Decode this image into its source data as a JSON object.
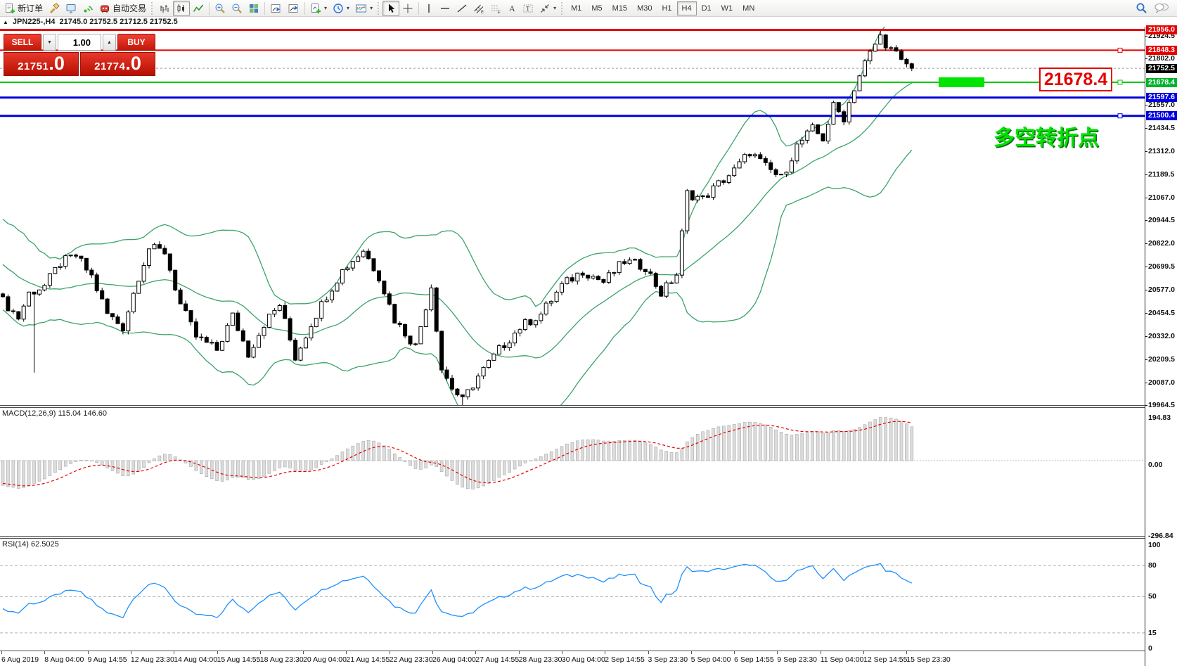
{
  "toolbar": {
    "new_order_label": "新订单",
    "auto_trading_label": "自动交易",
    "timeframes": [
      "M1",
      "M5",
      "M15",
      "M30",
      "H1",
      "H4",
      "D1",
      "W1",
      "MN"
    ],
    "active_timeframe": "H4",
    "icon_names": [
      "new-order",
      "hammer",
      "profiles",
      "signal",
      "auto-trading",
      "bar-chart",
      "candlestick-chart",
      "line-chart",
      "zoom-in",
      "zoom-out",
      "tile-windows",
      "chart-step-back",
      "chart-step-forward",
      "new-chart",
      "period-clock",
      "template-picture",
      "cursor",
      "crosshair",
      "vertical-line",
      "horizontal-line",
      "trendline",
      "equidistant-channel",
      "fibonacci",
      "text",
      "text-label",
      "arrows",
      "search",
      "chat"
    ]
  },
  "symbol_bar": {
    "triangle": "▲",
    "symbol": "JPN225-,H4",
    "ohlc": "21745.0 21752.5 21712.5 21752.5"
  },
  "trade_panel": {
    "sell_label": "SELL",
    "buy_label": "BUY",
    "volume": "1.00",
    "spin_down": "▼",
    "spin_up": "▲",
    "sell_price_main": "21751",
    "sell_price_frac": ".0",
    "buy_price_main": "21774",
    "buy_price_frac": ".0"
  },
  "annotations": {
    "price_callout": "21678.4",
    "chinese_note": "多空转折点"
  },
  "colors": {
    "line_red": "#e60000",
    "line_blue": "#0000e0",
    "line_green": "#00c800",
    "highlight_green": "#00e400",
    "badge_green": "#00b22d",
    "badge_black": "#000000",
    "band_green": "#3aa36a",
    "rsi_blue": "#1e90ff",
    "macd_bar_fill": "#dcdcdc",
    "macd_bar_stroke": "#a8a8a8"
  },
  "chart_data": {
    "type": "candlestick",
    "symbol": "JPN225-",
    "timeframe": "H4",
    "current_ohlc": {
      "open": 21745.0,
      "high": 21752.5,
      "low": 21712.5,
      "close": 21752.5
    },
    "ylim": [
      19964.5,
      21956.0
    ],
    "price_ticks": [
      21924.5,
      21802.0,
      21557.0,
      21434.5,
      21312.0,
      21189.5,
      21067.0,
      20944.5,
      20822.0,
      20699.5,
      20577.0,
      20454.5,
      20332.0,
      20209.5,
      20087.0,
      19964.5
    ],
    "price_badges": [
      {
        "price": 21956.0,
        "label": "21956.0",
        "color": "#e60000"
      },
      {
        "price": 21848.3,
        "label": "21848.3",
        "color": "#e60000"
      },
      {
        "price": 21752.5,
        "label": "21752.5",
        "color": "#000000"
      },
      {
        "price": 21678.4,
        "label": "21678.4",
        "color": "#00b22d"
      },
      {
        "price": 21597.6,
        "label": "21597.6",
        "color": "#0000e0"
      },
      {
        "price": 21500.4,
        "label": "21500.4",
        "color": "#0000e0"
      }
    ],
    "hlines": [
      {
        "price": 21956.0,
        "color": "red",
        "width": 3,
        "handle": false
      },
      {
        "price": 21848.3,
        "color": "red",
        "width": 2,
        "handle": true
      },
      {
        "price": 21678.4,
        "color": "green",
        "width": 2,
        "handle": true,
        "highlight": true
      },
      {
        "price": 21597.6,
        "color": "blue",
        "width": 3,
        "handle": false
      },
      {
        "price": 21500.4,
        "color": "blue",
        "width": 3,
        "handle": true
      }
    ],
    "current_price": 21752.5,
    "candles_n": 175,
    "price_anchors": [
      [
        0,
        20520
      ],
      [
        3,
        20430
      ],
      [
        5,
        20560
      ],
      [
        8,
        20600
      ],
      [
        11,
        20720
      ],
      [
        14,
        20760
      ],
      [
        17,
        20650
      ],
      [
        20,
        20450
      ],
      [
        23,
        20380
      ],
      [
        26,
        20650
      ],
      [
        28,
        20800
      ],
      [
        31,
        20780
      ],
      [
        34,
        20500
      ],
      [
        37,
        20330
      ],
      [
        41,
        20260
      ],
      [
        44,
        20440
      ],
      [
        47,
        20240
      ],
      [
        50,
        20400
      ],
      [
        53,
        20500
      ],
      [
        56,
        20220
      ],
      [
        59,
        20400
      ],
      [
        62,
        20550
      ],
      [
        65,
        20680
      ],
      [
        69,
        20790
      ],
      [
        72,
        20650
      ],
      [
        75,
        20420
      ],
      [
        79,
        20280
      ],
      [
        82,
        20600
      ],
      [
        84,
        20160
      ],
      [
        86,
        20060
      ],
      [
        88,
        19990
      ],
      [
        91,
        20120
      ],
      [
        95,
        20260
      ],
      [
        99,
        20380
      ],
      [
        103,
        20450
      ],
      [
        107,
        20600
      ],
      [
        111,
        20680
      ],
      [
        115,
        20620
      ],
      [
        119,
        20730
      ],
      [
        123,
        20700
      ],
      [
        126,
        20560
      ],
      [
        129,
        20660
      ],
      [
        131,
        21090
      ],
      [
        134,
        21060
      ],
      [
        137,
        21140
      ],
      [
        140,
        21210
      ],
      [
        143,
        21310
      ],
      [
        146,
        21230
      ],
      [
        149,
        21170
      ],
      [
        152,
        21340
      ],
      [
        155,
        21430
      ],
      [
        157,
        21380
      ],
      [
        159,
        21550
      ],
      [
        161,
        21490
      ],
      [
        163,
        21650
      ],
      [
        165,
        21780
      ],
      [
        167,
        21880
      ],
      [
        168,
        21920
      ],
      [
        170,
        21850
      ],
      [
        172,
        21800
      ],
      [
        174,
        21752.5
      ]
    ],
    "wick_events": [
      {
        "idx": 6,
        "low": 20140
      },
      {
        "idx": 88,
        "low": 19945
      },
      {
        "idx": 168,
        "high": 21950
      }
    ],
    "x_labels": [
      "6 Aug 2019",
      "8 Aug 04:00",
      "9 Aug 14:55",
      "12 Aug 23:30",
      "14 Aug 04:00",
      "15 Aug 14:55",
      "18 Aug 23:30",
      "20 Aug 04:00",
      "21 Aug 14:55",
      "22 Aug 23:30",
      "26 Aug 04:00",
      "27 Aug 14:55",
      "28 Aug 23:30",
      "30 Aug 04:00",
      "2 Sep 14:55",
      "3 Sep 23:30",
      "5 Sep 04:00",
      "6 Sep 14:55",
      "9 Sep 23:30",
      "11 Sep 04:00",
      "12 Sep 14:55",
      "15 Sep 23:30"
    ],
    "indicators": {
      "bollinger": {
        "period": 20,
        "deviation": 2
      },
      "macd": {
        "label": "MACD(12,26,9) 115.04 146.60",
        "main": 115.04,
        "signal": 146.6,
        "axis": [
          "194.83",
          "0.00",
          "-296.84"
        ],
        "axis_values": [
          194.83,
          0.0,
          -296.84
        ]
      },
      "rsi": {
        "label": "RSI(14) 62.5025",
        "value": 62.5025,
        "axis": [
          "100",
          "80",
          "50",
          "15",
          "0"
        ],
        "axis_values": [
          100,
          80,
          50,
          15,
          0
        ],
        "dashed_levels": [
          80,
          50,
          15
        ]
      }
    }
  }
}
